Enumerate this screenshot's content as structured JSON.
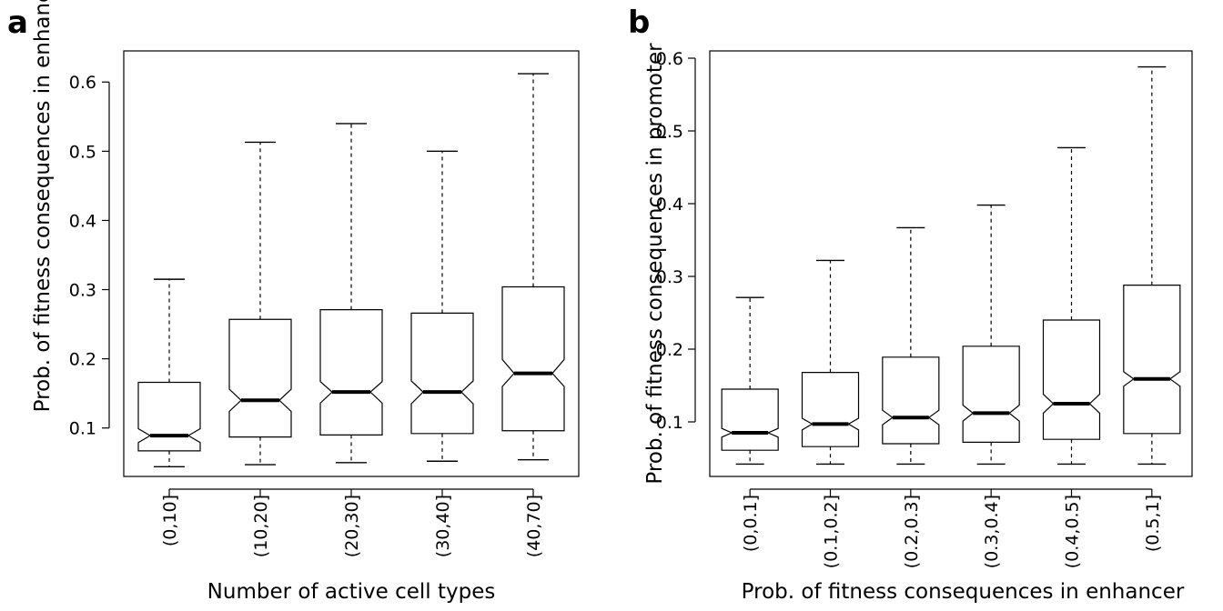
{
  "chart_data": [
    {
      "type": "box",
      "panel_label": "a",
      "notched": true,
      "xlabel": "Number of active cell types",
      "ylabel": "Prob. of fitness consequences in enhancer",
      "ylim": [
        0.03,
        0.645
      ],
      "yticks": [
        0.1,
        0.2,
        0.3,
        0.4,
        0.5,
        0.6
      ],
      "categories": [
        "(0,10]",
        "(10,20]",
        "(20,30]",
        "(30,40]",
        "(40,70]"
      ],
      "boxes": [
        {
          "whisker_low": 0.044,
          "q1": 0.067,
          "median": 0.089,
          "q3": 0.166,
          "whisker_high": 0.315,
          "notch_low": 0.079,
          "notch_high": 0.099
        },
        {
          "whisker_low": 0.047,
          "q1": 0.087,
          "median": 0.14,
          "q3": 0.257,
          "whisker_high": 0.513,
          "notch_low": 0.124,
          "notch_high": 0.156
        },
        {
          "whisker_low": 0.05,
          "q1": 0.09,
          "median": 0.152,
          "q3": 0.271,
          "whisker_high": 0.54,
          "notch_low": 0.136,
          "notch_high": 0.167
        },
        {
          "whisker_low": 0.052,
          "q1": 0.092,
          "median": 0.152,
          "q3": 0.266,
          "whisker_high": 0.5,
          "notch_low": 0.135,
          "notch_high": 0.168
        },
        {
          "whisker_low": 0.054,
          "q1": 0.096,
          "median": 0.179,
          "q3": 0.304,
          "whisker_high": 0.612,
          "notch_low": 0.16,
          "notch_high": 0.199
        }
      ]
    },
    {
      "type": "box",
      "panel_label": "b",
      "notched": true,
      "xlabel": "Prob. of fitness consequences in enhancer",
      "ylabel": "Prob. of fitness consequences in promoter",
      "ylim": [
        0.025,
        0.61
      ],
      "yticks": [
        0.1,
        0.2,
        0.3,
        0.4,
        0.5,
        0.6
      ],
      "categories": [
        "(0,0.1]",
        "(0.1,0.2]",
        "(0.2,0.3]",
        "(0.3,0.4]",
        "(0.4,0.5]",
        "(0.5,1]"
      ],
      "boxes": [
        {
          "whisker_low": 0.042,
          "q1": 0.061,
          "median": 0.085,
          "q3": 0.145,
          "whisker_high": 0.271,
          "notch_low": 0.079,
          "notch_high": 0.091
        },
        {
          "whisker_low": 0.042,
          "q1": 0.066,
          "median": 0.097,
          "q3": 0.168,
          "whisker_high": 0.322,
          "notch_low": 0.089,
          "notch_high": 0.105
        },
        {
          "whisker_low": 0.042,
          "q1": 0.07,
          "median": 0.106,
          "q3": 0.189,
          "whisker_high": 0.367,
          "notch_low": 0.096,
          "notch_high": 0.116
        },
        {
          "whisker_low": 0.042,
          "q1": 0.072,
          "median": 0.112,
          "q3": 0.204,
          "whisker_high": 0.398,
          "notch_low": 0.101,
          "notch_high": 0.123
        },
        {
          "whisker_low": 0.042,
          "q1": 0.076,
          "median": 0.125,
          "q3": 0.24,
          "whisker_high": 0.477,
          "notch_low": 0.112,
          "notch_high": 0.138
        },
        {
          "whisker_low": 0.042,
          "q1": 0.084,
          "median": 0.159,
          "q3": 0.288,
          "whisker_high": 0.588,
          "notch_low": 0.149,
          "notch_high": 0.169
        }
      ]
    }
  ]
}
